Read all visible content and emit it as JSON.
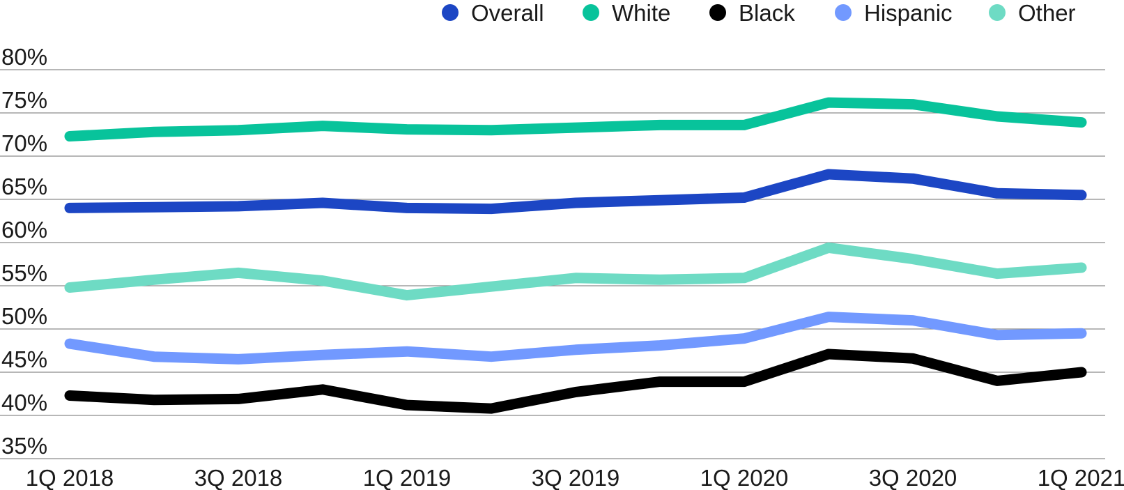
{
  "chart_data": {
    "type": "line",
    "title": "",
    "xlabel": "",
    "ylabel": "",
    "ylim": [
      35,
      80
    ],
    "y_ticks": [
      80,
      75,
      70,
      65,
      60,
      55,
      50,
      45,
      40,
      35
    ],
    "y_tick_labels": [
      "80%",
      "75%",
      "70%",
      "65%",
      "60%",
      "55%",
      "50%",
      "45%",
      "40%",
      "35%"
    ],
    "categories": [
      "1Q 2018",
      "2Q 2018",
      "3Q 2018",
      "4Q 2018",
      "1Q 2019",
      "2Q 2019",
      "3Q 2019",
      "4Q 2019",
      "1Q 2020",
      "2Q 2020",
      "3Q 2020",
      "4Q 2020",
      "1Q 2021"
    ],
    "x_tick_labels": [
      "1Q 2018",
      "",
      "3Q 2018",
      "",
      "1Q 2019",
      "",
      "3Q 2019",
      "",
      "1Q 2020",
      "",
      "3Q 2020",
      "",
      "1Q 2021"
    ],
    "grid": true,
    "legend_position": "top-right",
    "series": [
      {
        "name": "Overall",
        "color": "#1c46c4",
        "values": [
          64.0,
          64.1,
          64.2,
          64.6,
          64.0,
          63.9,
          64.6,
          64.9,
          65.2,
          67.9,
          67.4,
          65.7,
          65.5
        ]
      },
      {
        "name": "White",
        "color": "#08c39b",
        "values": [
          72.3,
          72.8,
          73.0,
          73.5,
          73.1,
          73.0,
          73.3,
          73.6,
          73.6,
          76.2,
          76.0,
          74.6,
          73.9
        ]
      },
      {
        "name": "Black",
        "color": "#000000",
        "values": [
          42.3,
          41.8,
          41.9,
          43.0,
          41.2,
          40.8,
          42.7,
          43.9,
          43.9,
          47.1,
          46.6,
          44.0,
          45.0
        ]
      },
      {
        "name": "Hispanic",
        "color": "#7299ff",
        "values": [
          48.3,
          46.8,
          46.5,
          47.0,
          47.4,
          46.8,
          47.6,
          48.1,
          48.9,
          51.4,
          51.0,
          49.3,
          49.5
        ]
      },
      {
        "name": "Other",
        "color": "#6edbc4",
        "values": [
          54.8,
          55.7,
          56.5,
          55.6,
          53.9,
          54.9,
          55.9,
          55.7,
          55.9,
          59.4,
          58.1,
          56.4,
          57.1
        ]
      }
    ]
  }
}
